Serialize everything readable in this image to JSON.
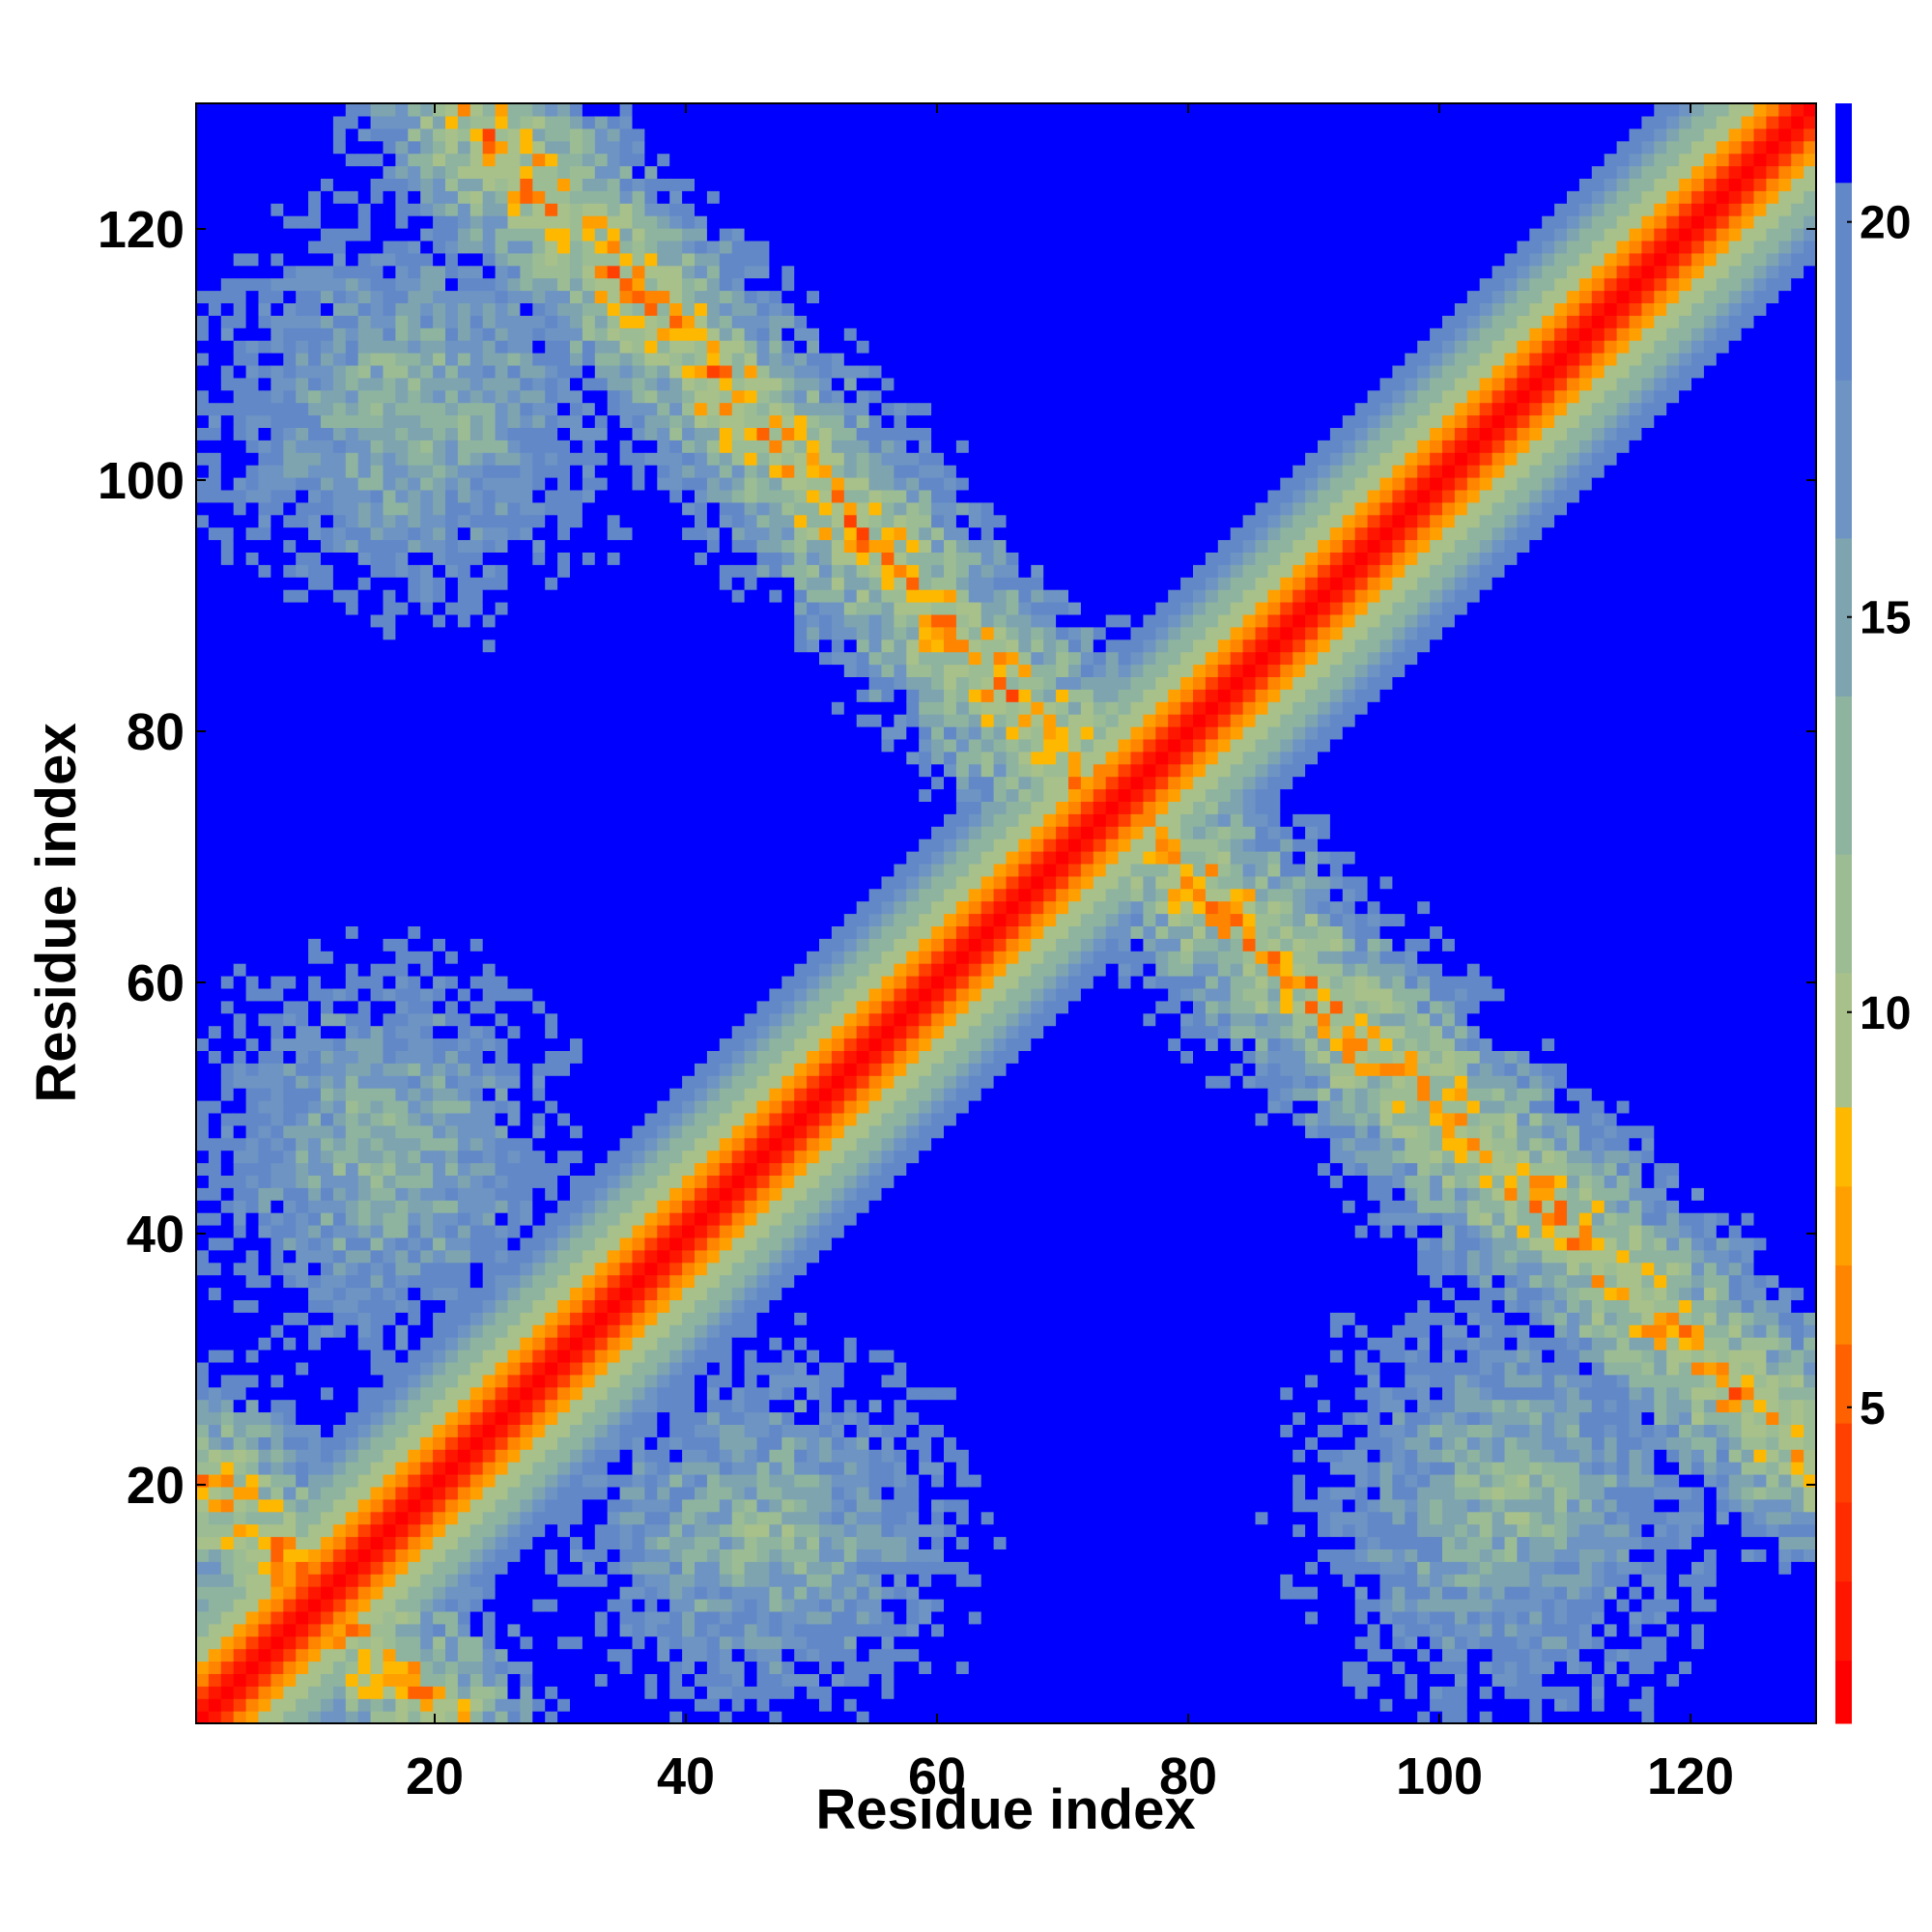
{
  "chart_data": {
    "type": "heatmap",
    "title": "",
    "xlabel": "Residue index",
    "ylabel": "Residue index",
    "n_residues": 130,
    "xlim": [
      1,
      130
    ],
    "ylim": [
      1,
      130
    ],
    "x_ticks": [
      20,
      40,
      60,
      80,
      100,
      120
    ],
    "y_ticks": [
      20,
      40,
      60,
      80,
      100,
      120
    ],
    "x_tick_labels": [
      "20",
      "40",
      "60",
      "80",
      "100",
      "120"
    ],
    "y_tick_labels": [
      "20",
      "40",
      "60",
      "80",
      "100",
      "120"
    ],
    "colorbar": {
      "range": [
        1,
        21.5
      ],
      "ticks": [
        5,
        10,
        15,
        20
      ],
      "tick_labels": [
        "5",
        "10",
        "15",
        "20"
      ],
      "levels": [
        {
          "max": 1.8,
          "color": "#ff0000"
        },
        {
          "max": 2.8,
          "color": "#ff1600"
        },
        {
          "max": 3.8,
          "color": "#ff2c00"
        },
        {
          "max": 4.8,
          "color": "#ff4000"
        },
        {
          "max": 5.8,
          "color": "#ff6000"
        },
        {
          "max": 6.8,
          "color": "#ff8400"
        },
        {
          "max": 7.8,
          "color": "#ffa000"
        },
        {
          "max": 8.8,
          "color": "#ffb800"
        },
        {
          "max": 10.5,
          "color": "#a8c08a"
        },
        {
          "max": 12.0,
          "color": "#9cbc94"
        },
        {
          "max": 14.0,
          "color": "#8eb4a0"
        },
        {
          "max": 16.0,
          "color": "#7ea4b0"
        },
        {
          "max": 18.0,
          "color": "#6e94c4"
        },
        {
          "max": 20.5,
          "color": "#6288c8"
        },
        {
          "max": 99,
          "color": "#0000ff"
        }
      ]
    },
    "description_of_structure": {
      "main_diagonal": "distance 0 on i=j, rising with |i-j|; red/orange band, green-grey halo to |i-j|~12",
      "anti_diagonal_contacts": [
        {
          "from": [
            22,
            130
          ],
          "to": [
            76,
            72
          ]
        },
        {
          "from": [
            72,
            76
          ],
          "to": [
            130,
            22
          ]
        },
        {
          "from": [
            1,
            20
          ],
          "to": [
            20,
            1
          ]
        }
      ],
      "off_diagonal_patches": [
        {
          "x_range": [
            1,
            30
          ],
          "y_range": [
            30,
            62
          ]
        },
        {
          "x_range": [
            30,
            62
          ],
          "y_range": [
            1,
            30
          ]
        },
        {
          "x_range": [
            1,
            35
          ],
          "y_range": [
            90,
            122
          ]
        },
        {
          "x_range": [
            90,
            122
          ],
          "y_range": [
            1,
            35
          ]
        }
      ]
    }
  }
}
